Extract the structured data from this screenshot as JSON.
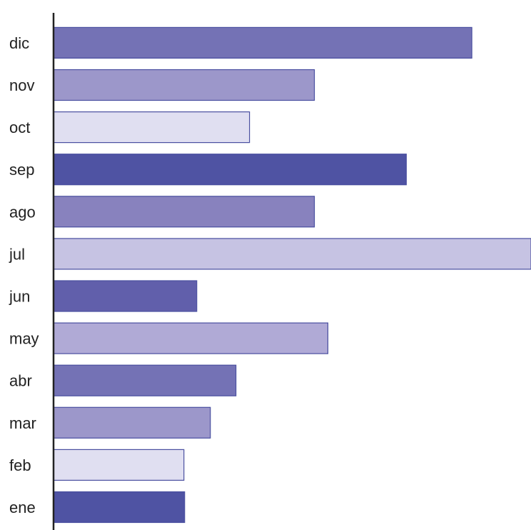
{
  "chart_data": {
    "type": "bar",
    "orientation": "horizontal",
    "categories": [
      "ene",
      "feb",
      "mar",
      "abr",
      "may",
      "jun",
      "jul",
      "ago",
      "sep",
      "oct",
      "nov",
      "dic"
    ],
    "values": [
      184,
      183,
      220,
      256,
      385,
      201,
      670,
      366,
      495,
      275,
      366,
      587
    ],
    "colors": [
      "#4f53a3",
      "#e0dff1",
      "#9c97ca",
      "#7472b5",
      "#b0aad6",
      "#615fab",
      "#c6c3e3",
      "#8882be",
      "#4f53a3",
      "#e0dff1",
      "#9c97ca",
      "#7472b5"
    ],
    "title": "",
    "xlabel": "",
    "ylabel": "",
    "xlim": [
      0,
      670
    ],
    "grid": false,
    "legend": "none"
  }
}
